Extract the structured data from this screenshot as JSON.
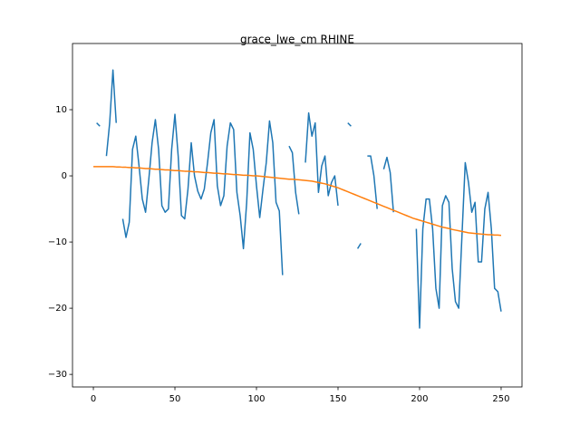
{
  "chart_data": {
    "type": "line",
    "title": "grace_lwe_cm RHINE",
    "x": [
      0,
      2,
      4,
      6,
      8,
      10,
      12,
      14,
      16,
      18,
      20,
      22,
      24,
      26,
      28,
      30,
      32,
      34,
      36,
      38,
      40,
      42,
      44,
      46,
      48,
      50,
      52,
      54,
      56,
      58,
      60,
      62,
      64,
      66,
      68,
      70,
      72,
      74,
      76,
      78,
      80,
      82,
      84,
      86,
      88,
      90,
      92,
      94,
      96,
      98,
      100,
      102,
      104,
      106,
      108,
      110,
      112,
      114,
      116,
      118,
      120,
      122,
      124,
      126,
      128,
      130,
      132,
      134,
      136,
      138,
      140,
      142,
      144,
      146,
      148,
      150,
      152,
      154,
      156,
      158,
      160,
      162,
      164,
      166,
      168,
      170,
      172,
      174,
      176,
      178,
      180,
      182,
      184,
      186,
      188,
      190,
      192,
      194,
      196,
      198,
      200,
      202,
      204,
      206,
      208,
      210,
      212,
      214,
      216,
      218,
      220,
      222,
      224,
      226,
      228,
      230,
      232,
      234,
      236,
      238,
      240,
      242,
      244,
      246,
      248,
      250
    ],
    "series": [
      {
        "color": "#1f77b4",
        "values": [
          null,
          8,
          7.5,
          null,
          3,
          8,
          16,
          8,
          null,
          -6.5,
          -9.3,
          -7,
          4,
          6,
          1.5,
          -3.5,
          -5.5,
          -0.5,
          5,
          8.5,
          4,
          -4.5,
          -5.5,
          -5,
          4,
          9.3,
          3,
          -6,
          -6.5,
          -2,
          5,
          0,
          -2.3,
          -3.5,
          -2,
          2,
          6.5,
          8.5,
          -1.5,
          -4.5,
          -3,
          4.5,
          8,
          7,
          -2.5,
          -6,
          -11,
          -4,
          6.5,
          4,
          -1.5,
          -6.3,
          -2,
          2,
          8.3,
          5,
          -4,
          -5.3,
          -15,
          null,
          4.5,
          3.5,
          -2.5,
          -5.8,
          null,
          2,
          9.5,
          6,
          8,
          -2.5,
          1.5,
          3,
          -3,
          -1,
          0,
          -4.5,
          null,
          null,
          8,
          7.5,
          null,
          -11,
          -10.2,
          null,
          3,
          3,
          0,
          -5,
          null,
          1,
          2.8,
          0.5,
          -5.5,
          null,
          null,
          null,
          null,
          null,
          null,
          -8,
          -23,
          -8,
          -3.5,
          -3.5,
          -8,
          -17,
          -20,
          -4.5,
          -3,
          -4,
          -14,
          -19,
          -20,
          -9,
          2,
          -1,
          -5.5,
          -4,
          -13,
          -13,
          -5,
          -2.5,
          -8,
          -17,
          -17.5,
          -20.5
        ]
      },
      {
        "color": "#ff7f0e",
        "values": [
          1.4,
          1.4,
          1.4,
          1.4,
          1.4,
          1.4,
          1.4,
          1.35,
          1.35,
          1.3,
          1.3,
          1.25,
          1.25,
          1.2,
          1.2,
          1.15,
          1.1,
          1.1,
          1.05,
          1.0,
          1.0,
          0.95,
          0.9,
          0.9,
          0.85,
          0.8,
          0.8,
          0.75,
          0.7,
          0.7,
          0.65,
          0.6,
          0.6,
          0.55,
          0.5,
          0.5,
          0.45,
          0.4,
          0.4,
          0.35,
          0.3,
          0.3,
          0.25,
          0.2,
          0.2,
          0.15,
          0.1,
          0.1,
          0.05,
          0.0,
          0.0,
          -0.05,
          -0.1,
          -0.15,
          -0.2,
          -0.25,
          -0.3,
          -0.35,
          -0.4,
          -0.45,
          -0.5,
          -0.5,
          -0.55,
          -0.6,
          -0.65,
          -0.7,
          -0.75,
          -0.8,
          -0.9,
          -1.0,
          -1.1,
          -1.2,
          -1.35,
          -1.5,
          -1.65,
          -1.8,
          -2.0,
          -2.2,
          -2.4,
          -2.6,
          -2.8,
          -3.0,
          -3.2,
          -3.4,
          -3.6,
          -3.8,
          -4.0,
          -4.2,
          -4.4,
          -4.6,
          -4.8,
          -5.0,
          -5.2,
          -5.4,
          -5.6,
          -5.8,
          -6.0,
          -6.2,
          -6.4,
          -6.55,
          -6.7,
          -6.85,
          -7.0,
          -7.15,
          -7.3,
          -7.45,
          -7.6,
          -7.75,
          -7.85,
          -7.95,
          -8.1,
          -8.2,
          -8.3,
          -8.4,
          -8.5,
          -8.6,
          -8.65,
          -8.7,
          -8.75,
          -8.8,
          -8.85,
          -8.9,
          -8.9,
          -8.95,
          -8.95,
          -9.0
        ]
      }
    ],
    "xlim": [
      -12.8,
      262.8
    ],
    "xticks": [
      0,
      50,
      100,
      150,
      200,
      250
    ],
    "ylim": [
      -31.9,
      20
    ],
    "yticks": [
      {
        "value": -30,
        "label": "−30"
      },
      {
        "value": -20,
        "label": "−20"
      },
      {
        "value": -10,
        "label": "−10"
      },
      0,
      10
    ]
  }
}
